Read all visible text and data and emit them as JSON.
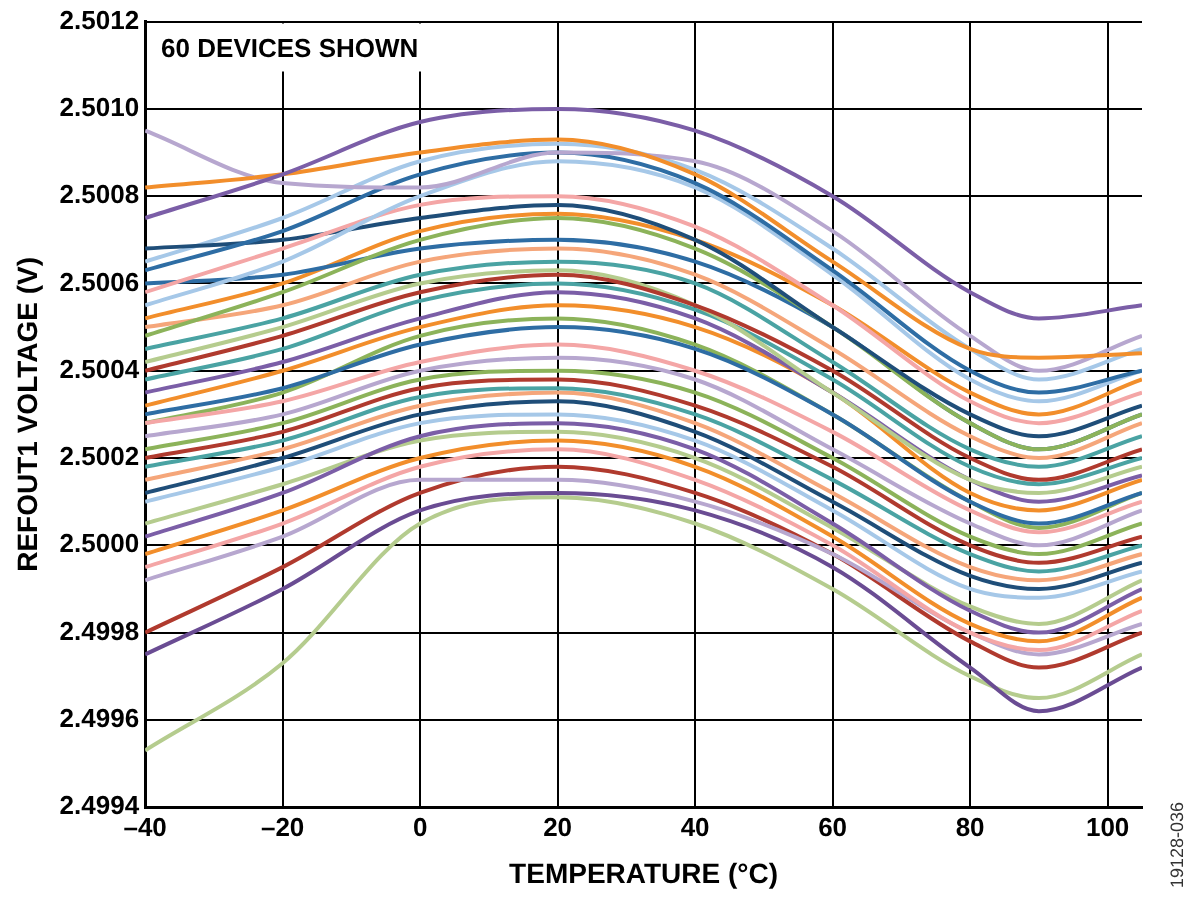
{
  "chart_data": {
    "type": "line",
    "xlabel": "TEMPERATURE (°C)",
    "ylabel": "REFOUT1 VOLTAGE (V)",
    "annotations": [
      "60 DEVICES SHOWN",
      "19128-036"
    ],
    "grid": true,
    "legend": false,
    "marker": "none",
    "line_style": "solid",
    "xlim": [
      -40,
      105
    ],
    "xticks": [
      {
        "value": -40,
        "label": "–40"
      },
      {
        "value": -20,
        "label": "–20"
      },
      0,
      20,
      40,
      60,
      80,
      100
    ],
    "ylim": [
      2.4994,
      2.5012
    ],
    "yticks": [
      2.4994,
      2.4996,
      2.4998,
      {
        "value": 2.5,
        "label": "2.5000"
      },
      2.5002,
      2.5004,
      2.5006,
      2.5008,
      {
        "value": 2.501,
        "label": "2.5010"
      },
      2.5012
    ],
    "x": [
      -40,
      -20,
      0,
      20,
      40,
      60,
      80,
      90,
      105
    ],
    "series": [
      {
        "color": "#7b5ea7",
        "values": [
          2.50075,
          2.50085,
          2.50097,
          2.501,
          2.50095,
          2.5008,
          2.50058,
          2.50052,
          2.50055
        ]
      },
      {
        "color": "#f28e2b",
        "values": [
          2.50082,
          2.50085,
          2.5009,
          2.50093,
          2.50085,
          2.50065,
          2.50045,
          2.50043,
          2.50044
        ]
      },
      {
        "color": "#b7a7cf",
        "values": [
          2.50095,
          2.50083,
          2.50082,
          2.5009,
          2.50088,
          2.50072,
          2.50048,
          2.5004,
          2.50048
        ]
      },
      {
        "color": "#2e6da4",
        "values": [
          2.50063,
          2.50072,
          2.50085,
          2.5009,
          2.50083,
          2.50063,
          2.5004,
          2.50035,
          2.5004
        ]
      },
      {
        "color": "#a6c8e8",
        "values": [
          2.50055,
          2.50065,
          2.5008,
          2.50088,
          2.50082,
          2.50062,
          2.50038,
          2.50033,
          2.5004
        ]
      },
      {
        "color": "#f4a6a6",
        "values": [
          2.50058,
          2.50068,
          2.50078,
          2.5008,
          2.50073,
          2.50055,
          2.50033,
          2.50028,
          2.50035
        ]
      },
      {
        "color": "#1f4e79",
        "values": [
          2.50068,
          2.5007,
          2.50075,
          2.50078,
          2.5007,
          2.5005,
          2.5003,
          2.50025,
          2.50032
        ]
      },
      {
        "color": "#8cb35a",
        "values": [
          2.50048,
          2.50058,
          2.5007,
          2.50075,
          2.50068,
          2.5005,
          2.50028,
          2.50022,
          2.5003
        ]
      },
      {
        "color": "#f5a67a",
        "values": [
          2.5005,
          2.50055,
          2.50065,
          2.50068,
          2.50062,
          2.50045,
          2.50025,
          2.5002,
          2.50028
        ]
      },
      {
        "color": "#4aa3a3",
        "values": [
          2.50045,
          2.50052,
          2.50062,
          2.50065,
          2.5006,
          2.50042,
          2.50022,
          2.50018,
          2.50025
        ]
      },
      {
        "color": "#b03a2e",
        "values": [
          2.5004,
          2.50048,
          2.50058,
          2.50062,
          2.50055,
          2.5004,
          2.5002,
          2.50015,
          2.50022
        ]
      },
      {
        "color": "#b5cc8e",
        "values": [
          2.50042,
          2.5005,
          2.5006,
          2.50063,
          2.50055,
          2.50035,
          2.50015,
          2.50012,
          2.50018
        ]
      },
      {
        "color": "#7b5ea7",
        "values": [
          2.50035,
          2.50042,
          2.50052,
          2.50058,
          2.50052,
          2.50035,
          2.50015,
          2.5001,
          2.50016
        ]
      },
      {
        "color": "#f28e2b",
        "values": [
          2.50032,
          2.5004,
          2.5005,
          2.50055,
          2.5005,
          2.50035,
          2.50012,
          2.50008,
          2.50015
        ]
      },
      {
        "color": "#2e6da4",
        "values": [
          2.5003,
          2.50036,
          2.50046,
          2.5005,
          2.50045,
          2.5003,
          2.5001,
          2.50005,
          2.50012
        ]
      },
      {
        "color": "#f4a6a6",
        "values": [
          2.50028,
          2.50033,
          2.50042,
          2.50046,
          2.5004,
          2.50026,
          2.50008,
          2.50003,
          2.5001
        ]
      },
      {
        "color": "#b7a7cf",
        "values": [
          2.50025,
          2.5003,
          2.5004,
          2.50043,
          2.50038,
          2.50022,
          2.50005,
          2.5,
          2.50008
        ]
      },
      {
        "color": "#8cb35a",
        "values": [
          2.50022,
          2.50028,
          2.50038,
          2.5004,
          2.50035,
          2.5002,
          2.50002,
          2.49998,
          2.50005
        ]
      },
      {
        "color": "#b03a2e",
        "values": [
          2.5002,
          2.50026,
          2.50036,
          2.50038,
          2.50032,
          2.50018,
          2.5,
          2.49996,
          2.50002
        ]
      },
      {
        "color": "#4aa3a3",
        "values": [
          2.50018,
          2.50024,
          2.50034,
          2.50036,
          2.5003,
          2.50015,
          2.49998,
          2.49994,
          2.5
        ]
      },
      {
        "color": "#f5a67a",
        "values": [
          2.50015,
          2.50022,
          2.50032,
          2.50035,
          2.50028,
          2.50012,
          2.49995,
          2.49992,
          2.49998
        ]
      },
      {
        "color": "#1f4e79",
        "values": [
          2.50012,
          2.5002,
          2.5003,
          2.50033,
          2.50026,
          2.5001,
          2.49993,
          2.4999,
          2.49996
        ]
      },
      {
        "color": "#a6c8e8",
        "values": [
          2.5001,
          2.50018,
          2.50028,
          2.5003,
          2.50024,
          2.50008,
          2.4999,
          2.49988,
          2.49994
        ]
      },
      {
        "color": "#7b5ea7",
        "values": [
          2.50002,
          2.50012,
          2.50025,
          2.50028,
          2.50022,
          2.50005,
          2.49985,
          2.4998,
          2.4999
        ]
      },
      {
        "color": "#b5cc8e",
        "values": [
          2.50005,
          2.50014,
          2.50024,
          2.50026,
          2.5002,
          2.50004,
          2.49986,
          2.49982,
          2.49992
        ]
      },
      {
        "color": "#f28e2b",
        "values": [
          2.49998,
          2.50008,
          2.5002,
          2.50024,
          2.50018,
          2.50002,
          2.49982,
          2.49978,
          2.49988
        ]
      },
      {
        "color": "#f4a6a6",
        "values": [
          2.49995,
          2.50005,
          2.50018,
          2.50022,
          2.50015,
          2.5,
          2.4998,
          2.49976,
          2.49985
        ]
      },
      {
        "color": "#b7a7cf",
        "values": [
          2.49992,
          2.50002,
          2.50015,
          2.50015,
          2.5001,
          2.49998,
          2.4998,
          2.49975,
          2.49982
        ]
      },
      {
        "color": "#6a4c93",
        "values": [
          2.49975,
          2.4999,
          2.50008,
          2.50012,
          2.50008,
          2.49995,
          2.49972,
          2.49962,
          2.49972
        ]
      },
      {
        "color": "#b5cc8e",
        "values": [
          2.49953,
          2.49973,
          2.50005,
          2.50011,
          2.50005,
          2.4999,
          2.4997,
          2.49965,
          2.49975
        ]
      },
      {
        "color": "#b03a2e",
        "values": [
          2.4998,
          2.49995,
          2.50012,
          2.50018,
          2.50012,
          2.49998,
          2.49978,
          2.49972,
          2.4998
        ]
      },
      {
        "color": "#2e6da4",
        "values": [
          2.5006,
          2.50062,
          2.50068,
          2.5007,
          2.50065,
          2.5005,
          2.50028,
          2.50022,
          2.5003
        ]
      },
      {
        "color": "#f28e2b",
        "values": [
          2.50052,
          2.5006,
          2.50072,
          2.50076,
          2.5007,
          2.50055,
          2.50035,
          2.5003,
          2.50038
        ]
      },
      {
        "color": "#4aa3a3",
        "values": [
          2.50038,
          2.50045,
          2.50056,
          2.5006,
          2.50054,
          2.50038,
          2.50018,
          2.50014,
          2.5002
        ]
      },
      {
        "color": "#a6c8e8",
        "values": [
          2.50065,
          2.50075,
          2.50088,
          2.50092,
          2.50086,
          2.50068,
          2.50045,
          2.50038,
          2.50045
        ]
      },
      {
        "color": "#8cb35a",
        "values": [
          2.50028,
          2.50035,
          2.50048,
          2.50052,
          2.50046,
          2.5003,
          2.5001,
          2.50004,
          2.50012
        ]
      }
    ]
  }
}
